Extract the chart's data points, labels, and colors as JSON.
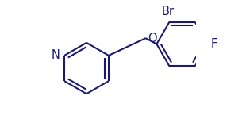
{
  "bond_color": "#1a1a6e",
  "bg_color": "#ffffff",
  "line_width": 1.5,
  "font_size": 10.5,
  "label_N": "N",
  "label_O": "O",
  "label_Br": "Br",
  "label_F": "F"
}
